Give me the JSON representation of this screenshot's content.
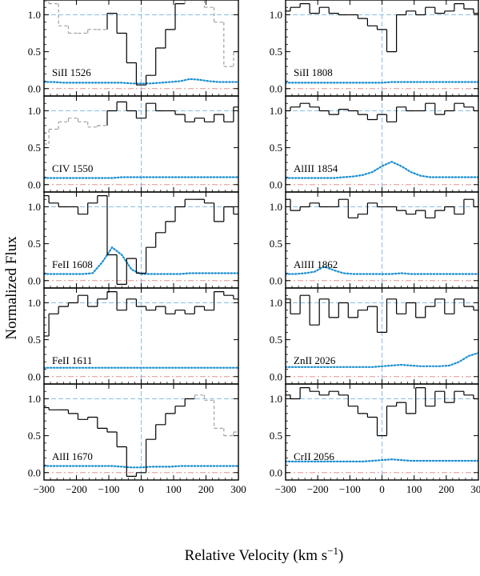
{
  "figure": {
    "ylabel": "Normalized Flux",
    "xlabel_main": "Relative Velocity  (km s",
    "xlabel_exp": "−1",
    "xlabel_close": ")"
  },
  "colors": {
    "data": "#000000",
    "masked": "#a0a0a0",
    "error": "#1a8fd0",
    "continuum": "#7ab8de",
    "zero": "#e08080",
    "center": "#7ab8de"
  },
  "chart_data": [
    {
      "type": "line",
      "label": "SiII 1526",
      "column": "left",
      "xlim": [
        -300,
        300
      ],
      "ylim": [
        -0.1,
        1.2
      ],
      "yticks": [
        "0.0",
        "0.5",
        "1.0"
      ],
      "show_xticklabels": false,
      "x": [
        -300,
        -270,
        -240,
        -210,
        -180,
        -150,
        -120,
        -90,
        -60,
        -30,
        0,
        30,
        60,
        90,
        120,
        150,
        180,
        210,
        240,
        270,
        300
      ],
      "flux": [
        1.18,
        1.15,
        0.85,
        0.75,
        0.75,
        0.8,
        0.8,
        1.02,
        0.75,
        0.35,
        0.05,
        0.18,
        0.55,
        0.8,
        1.15,
        1.2,
        1.2,
        1.1,
        0.9,
        0.3,
        0.5
      ],
      "masked_ranges": [
        [
          -300,
          -105
        ],
        [
          130,
          300
        ]
      ],
      "error": [
        0.09,
        0.09,
        0.08,
        0.08,
        0.08,
        0.08,
        0.08,
        0.08,
        0.08,
        0.07,
        0.07,
        0.07,
        0.08,
        0.09,
        0.1,
        0.13,
        0.12,
        0.1,
        0.09,
        0.09,
        0.09
      ]
    },
    {
      "type": "line",
      "label": "SiII 1808",
      "column": "right",
      "xlim": [
        -300,
        300
      ],
      "ylim": [
        -0.1,
        1.2
      ],
      "yticks": [
        "0.0",
        "0.5",
        "1.0"
      ],
      "show_xticklabels": false,
      "x": [
        -300,
        -270,
        -240,
        -210,
        -180,
        -150,
        -120,
        -90,
        -60,
        -30,
        0,
        30,
        60,
        90,
        120,
        150,
        180,
        210,
        240,
        270,
        300
      ],
      "flux": [
        1.05,
        1.1,
        1.15,
        1.02,
        1.1,
        1.02,
        1.0,
        1.0,
        0.95,
        0.85,
        0.8,
        0.5,
        1.0,
        1.05,
        1.0,
        1.1,
        1.02,
        1.05,
        1.15,
        1.08,
        1.02
      ],
      "masked_ranges": [],
      "error": [
        0.08,
        0.08,
        0.08,
        0.08,
        0.08,
        0.08,
        0.08,
        0.08,
        0.08,
        0.08,
        0.08,
        0.09,
        0.09,
        0.09,
        0.09,
        0.09,
        0.09,
        0.09,
        0.09,
        0.09,
        0.09
      ]
    },
    {
      "type": "line",
      "label": "CIV 1550",
      "column": "left",
      "xlim": [
        -300,
        300
      ],
      "ylim": [
        -0.1,
        1.2
      ],
      "yticks": [
        "0.0",
        "0.5",
        "1.0"
      ],
      "show_xticklabels": false,
      "x": [
        -300,
        -270,
        -240,
        -210,
        -180,
        -150,
        -120,
        -90,
        -60,
        -30,
        0,
        30,
        60,
        90,
        120,
        150,
        180,
        210,
        240,
        270,
        300
      ],
      "flux": [
        0.55,
        0.75,
        0.85,
        0.9,
        0.85,
        0.78,
        0.8,
        1.0,
        1.12,
        1.0,
        0.9,
        1.1,
        1.0,
        1.0,
        0.95,
        0.85,
        0.9,
        0.85,
        0.95,
        0.85,
        1.05
      ],
      "masked_ranges": [
        [
          -300,
          -110
        ]
      ],
      "error": [
        0.09,
        0.09,
        0.09,
        0.09,
        0.09,
        0.09,
        0.09,
        0.09,
        0.1,
        0.1,
        0.1,
        0.1,
        0.1,
        0.1,
        0.1,
        0.1,
        0.1,
        0.1,
        0.1,
        0.1,
        0.1
      ]
    },
    {
      "type": "line",
      "label": "AlIII 1854",
      "column": "right",
      "xlim": [
        -300,
        300
      ],
      "ylim": [
        -0.1,
        1.2
      ],
      "yticks": [
        "0.0",
        "0.5",
        "1.0"
      ],
      "show_xticklabels": false,
      "x": [
        -300,
        -270,
        -240,
        -210,
        -180,
        -150,
        -120,
        -90,
        -60,
        -30,
        0,
        30,
        60,
        90,
        120,
        150,
        180,
        210,
        240,
        270,
        300
      ],
      "flux": [
        1.0,
        1.05,
        1.1,
        1.05,
        1.0,
        0.95,
        1.02,
        1.0,
        0.95,
        0.88,
        0.95,
        0.85,
        1.05,
        1.0,
        1.0,
        1.1,
        0.95,
        1.0,
        1.1,
        1.05,
        1.0
      ],
      "masked_ranges": [],
      "error": [
        0.09,
        0.09,
        0.09,
        0.09,
        0.09,
        0.09,
        0.1,
        0.11,
        0.13,
        0.17,
        0.25,
        0.31,
        0.25,
        0.17,
        0.12,
        0.1,
        0.1,
        0.1,
        0.1,
        0.1,
        0.1
      ]
    },
    {
      "type": "line",
      "label": "FeII 1608",
      "column": "left",
      "xlim": [
        -300,
        300
      ],
      "ylim": [
        -0.1,
        1.2
      ],
      "yticks": [
        "0.0",
        "0.5",
        "1.0"
      ],
      "show_xticklabels": false,
      "x": [
        -300,
        -270,
        -240,
        -210,
        -180,
        -150,
        -120,
        -90,
        -60,
        -30,
        0,
        30,
        60,
        90,
        120,
        150,
        180,
        210,
        240,
        270,
        300
      ],
      "flux": [
        1.15,
        1.05,
        1.0,
        1.0,
        0.9,
        1.05,
        1.15,
        0.35,
        -0.05,
        0.3,
        0.1,
        0.45,
        0.65,
        0.8,
        1.0,
        1.1,
        1.1,
        1.05,
        0.8,
        1.0,
        0.9
      ],
      "masked_ranges": [],
      "error": [
        0.09,
        0.09,
        0.09,
        0.09,
        0.09,
        0.1,
        0.25,
        0.45,
        0.35,
        0.15,
        0.09,
        0.09,
        0.09,
        0.09,
        0.09,
        0.1,
        0.1,
        0.1,
        0.1,
        0.1,
        0.1
      ]
    },
    {
      "type": "line",
      "label": "AlIII 1862",
      "column": "right",
      "xlim": [
        -300,
        300
      ],
      "ylim": [
        -0.1,
        1.2
      ],
      "yticks": [
        "0.0",
        "0.5",
        "1.0"
      ],
      "show_xticklabels": false,
      "x": [
        -300,
        -270,
        -240,
        -210,
        -180,
        -150,
        -120,
        -90,
        -60,
        -30,
        0,
        30,
        60,
        90,
        120,
        150,
        180,
        210,
        240,
        270,
        300
      ],
      "flux": [
        1.1,
        0.95,
        1.0,
        1.05,
        1.0,
        1.0,
        1.1,
        0.85,
        0.9,
        1.05,
        1.0,
        1.0,
        0.95,
        0.9,
        0.95,
        0.85,
        0.95,
        1.0,
        0.9,
        1.1,
        1.0
      ],
      "masked_ranges": [],
      "error": [
        0.09,
        0.09,
        0.1,
        0.12,
        0.19,
        0.14,
        0.1,
        0.09,
        0.09,
        0.09,
        0.09,
        0.09,
        0.1,
        0.09,
        0.09,
        0.09,
        0.09,
        0.09,
        0.09,
        0.09,
        0.09
      ]
    },
    {
      "type": "line",
      "label": "FeII 1611",
      "column": "left",
      "xlim": [
        -300,
        300
      ],
      "ylim": [
        -0.1,
        1.2
      ],
      "yticks": [
        "0.0",
        "0.5",
        "1.0"
      ],
      "show_xticklabels": false,
      "x": [
        -300,
        -270,
        -240,
        -210,
        -180,
        -150,
        -120,
        -90,
        -60,
        -30,
        0,
        30,
        60,
        90,
        120,
        150,
        180,
        210,
        240,
        270,
        300
      ],
      "flux": [
        0.55,
        0.85,
        0.95,
        1.0,
        1.1,
        0.95,
        1.05,
        1.15,
        0.9,
        1.05,
        0.95,
        0.9,
        0.95,
        0.85,
        0.9,
        0.85,
        0.95,
        0.9,
        1.15,
        1.1,
        1.05
      ],
      "masked_ranges": [],
      "error": [
        0.12,
        0.12,
        0.12,
        0.12,
        0.12,
        0.12,
        0.12,
        0.12,
        0.12,
        0.12,
        0.12,
        0.12,
        0.12,
        0.12,
        0.12,
        0.12,
        0.12,
        0.12,
        0.12,
        0.12,
        0.12
      ]
    },
    {
      "type": "line",
      "label": "ZnII 2026",
      "column": "right",
      "xlim": [
        -300,
        300
      ],
      "ylim": [
        -0.1,
        1.2
      ],
      "yticks": [
        "0.0",
        "0.5",
        "1.0"
      ],
      "show_xticklabels": false,
      "x": [
        -300,
        -270,
        -240,
        -210,
        -180,
        -150,
        -120,
        -90,
        -60,
        -30,
        0,
        30,
        60,
        90,
        120,
        150,
        180,
        210,
        240,
        270,
        300
      ],
      "flux": [
        1.05,
        0.85,
        1.1,
        0.7,
        1.05,
        0.8,
        1.0,
        0.8,
        0.9,
        0.95,
        0.6,
        1.05,
        0.85,
        1.0,
        0.8,
        0.95,
        1.05,
        0.85,
        1.05,
        0.95,
        0.9
      ],
      "masked_ranges": [],
      "error": [
        0.13,
        0.13,
        0.13,
        0.13,
        0.13,
        0.13,
        0.13,
        0.13,
        0.13,
        0.13,
        0.14,
        0.15,
        0.16,
        0.15,
        0.14,
        0.14,
        0.14,
        0.15,
        0.2,
        0.28,
        0.32
      ]
    },
    {
      "type": "line",
      "label": "AlII 1670",
      "column": "left",
      "xlim": [
        -300,
        300
      ],
      "ylim": [
        -0.1,
        1.2
      ],
      "yticks": [
        "0.0",
        "0.5",
        "1.0"
      ],
      "show_xticklabels": false,
      "x": [
        -300,
        -270,
        -240,
        -210,
        -180,
        -150,
        -120,
        -90,
        -60,
        -30,
        0,
        30,
        60,
        90,
        120,
        150,
        180,
        210,
        240,
        270,
        300
      ],
      "flux": [
        0.88,
        0.85,
        0.85,
        0.8,
        0.72,
        0.75,
        0.6,
        0.55,
        0.35,
        -0.05,
        0.0,
        0.45,
        0.65,
        0.8,
        0.9,
        1.0,
        1.05,
        0.98,
        0.6,
        0.5,
        0.55
      ],
      "masked_ranges": [
        [
          180,
          300
        ]
      ],
      "error": [
        0.09,
        0.09,
        0.09,
        0.09,
        0.09,
        0.09,
        0.09,
        0.09,
        0.08,
        0.07,
        0.07,
        0.08,
        0.08,
        0.08,
        0.09,
        0.09,
        0.09,
        0.09,
        0.09,
        0.09,
        0.09
      ]
    },
    {
      "type": "line",
      "label": "CrII 2056",
      "column": "right",
      "xlim": [
        -300,
        300
      ],
      "ylim": [
        -0.1,
        1.2
      ],
      "yticks": [
        "0.0",
        "0.5",
        "1.0"
      ],
      "show_xticklabels": false,
      "x": [
        -300,
        -270,
        -240,
        -210,
        -180,
        -150,
        -120,
        -90,
        -60,
        -30,
        0,
        30,
        60,
        90,
        120,
        150,
        180,
        210,
        240,
        270,
        300
      ],
      "flux": [
        1.05,
        1.0,
        1.15,
        1.1,
        1.05,
        1.1,
        1.05,
        0.9,
        0.8,
        0.75,
        0.5,
        0.9,
        0.95,
        0.8,
        1.15,
        0.9,
        1.1,
        0.95,
        1.1,
        1.05,
        1.0
      ],
      "masked_ranges": [],
      "error": [
        0.15,
        0.15,
        0.15,
        0.15,
        0.15,
        0.15,
        0.15,
        0.15,
        0.15,
        0.16,
        0.17,
        0.18,
        0.17,
        0.16,
        0.16,
        0.16,
        0.16,
        0.16,
        0.16,
        0.16,
        0.16
      ]
    }
  ],
  "xticks": [
    "−300",
    "−200",
    "−100",
    "0",
    "100",
    "200",
    "300"
  ],
  "xtick_values": [
    -300,
    -200,
    -100,
    0,
    100,
    200,
    300
  ]
}
